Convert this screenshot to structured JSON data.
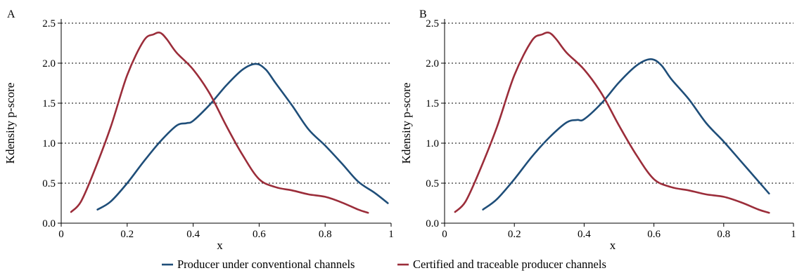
{
  "colors": {
    "conventional": "#1f4e79",
    "certified": "#9b2d3a"
  },
  "legend": [
    {
      "label": "Producer under conventional channels",
      "color": "#1f4e79"
    },
    {
      "label": "Certified and traceable producer channels",
      "color": "#9b2d3a"
    }
  ],
  "chart_data": [
    {
      "panel": "A",
      "type": "line",
      "xlabel": "x",
      "ylabel": "Kdensity p-score",
      "xlim": [
        0,
        1
      ],
      "ylim": [
        0,
        2.5
      ],
      "xticks": [
        "0",
        "0.2",
        "0.4",
        "0.6",
        "0.8",
        "1"
      ],
      "xtick_values": [
        0,
        0.2,
        0.4,
        0.6,
        0.8,
        1
      ],
      "yticks": [
        "0.0",
        "0.5",
        "1.0",
        "1.5",
        "2.0",
        "2.5"
      ],
      "ytick_values": [
        0,
        0.5,
        1.0,
        1.5,
        2.0,
        2.5
      ],
      "grid": "horizontal dotted",
      "series": [
        {
          "name": "Producer under conventional channels",
          "color": "#1f4e79",
          "points": [
            [
              0.11,
              0.17
            ],
            [
              0.15,
              0.27
            ],
            [
              0.2,
              0.5
            ],
            [
              0.25,
              0.77
            ],
            [
              0.3,
              1.02
            ],
            [
              0.35,
              1.22
            ],
            [
              0.38,
              1.25
            ],
            [
              0.4,
              1.28
            ],
            [
              0.45,
              1.48
            ],
            [
              0.5,
              1.72
            ],
            [
              0.55,
              1.92
            ],
            [
              0.59,
              1.99
            ],
            [
              0.62,
              1.92
            ],
            [
              0.65,
              1.75
            ],
            [
              0.7,
              1.47
            ],
            [
              0.75,
              1.17
            ],
            [
              0.8,
              0.97
            ],
            [
              0.85,
              0.75
            ],
            [
              0.9,
              0.52
            ],
            [
              0.95,
              0.38
            ],
            [
              0.99,
              0.25
            ]
          ]
        },
        {
          "name": "Certified and traceable producer channels",
          "color": "#9b2d3a",
          "points": [
            [
              0.03,
              0.14
            ],
            [
              0.06,
              0.27
            ],
            [
              0.1,
              0.65
            ],
            [
              0.15,
              1.2
            ],
            [
              0.2,
              1.85
            ],
            [
              0.25,
              2.28
            ],
            [
              0.28,
              2.36
            ],
            [
              0.3,
              2.38
            ],
            [
              0.32,
              2.3
            ],
            [
              0.35,
              2.13
            ],
            [
              0.4,
              1.92
            ],
            [
              0.45,
              1.62
            ],
            [
              0.5,
              1.22
            ],
            [
              0.55,
              0.85
            ],
            [
              0.6,
              0.55
            ],
            [
              0.65,
              0.45
            ],
            [
              0.7,
              0.41
            ],
            [
              0.75,
              0.36
            ],
            [
              0.8,
              0.33
            ],
            [
              0.85,
              0.26
            ],
            [
              0.9,
              0.17
            ],
            [
              0.93,
              0.13
            ]
          ]
        }
      ]
    },
    {
      "panel": "B",
      "type": "line",
      "xlabel": "x",
      "ylabel": "Kdensity p-score",
      "xlim": [
        0,
        1
      ],
      "ylim": [
        0,
        2.5
      ],
      "xticks": [
        "0",
        "0.2",
        "0.4",
        "0.6",
        "0.8",
        "1"
      ],
      "xtick_values": [
        0,
        0.2,
        0.4,
        0.6,
        0.8,
        1
      ],
      "yticks": [
        "0.0",
        "0.5",
        "1.0",
        "1.5",
        "2.0",
        "2.5"
      ],
      "ytick_values": [
        0,
        0.5,
        1.0,
        1.5,
        2.0,
        2.5
      ],
      "grid": "horizontal dotted",
      "series": [
        {
          "name": "Producer under conventional channels",
          "color": "#1f4e79",
          "points": [
            [
              0.11,
              0.17
            ],
            [
              0.15,
              0.3
            ],
            [
              0.2,
              0.55
            ],
            [
              0.25,
              0.83
            ],
            [
              0.3,
              1.07
            ],
            [
              0.35,
              1.26
            ],
            [
              0.38,
              1.29
            ],
            [
              0.4,
              1.3
            ],
            [
              0.45,
              1.5
            ],
            [
              0.5,
              1.76
            ],
            [
              0.55,
              1.97
            ],
            [
              0.59,
              2.05
            ],
            [
              0.62,
              1.98
            ],
            [
              0.65,
              1.8
            ],
            [
              0.7,
              1.55
            ],
            [
              0.75,
              1.25
            ],
            [
              0.8,
              1.02
            ],
            [
              0.85,
              0.77
            ],
            [
              0.9,
              0.52
            ],
            [
              0.93,
              0.37
            ]
          ]
        },
        {
          "name": "Certified and traceable producer channels",
          "color": "#9b2d3a",
          "points": [
            [
              0.03,
              0.14
            ],
            [
              0.06,
              0.27
            ],
            [
              0.1,
              0.65
            ],
            [
              0.15,
              1.2
            ],
            [
              0.2,
              1.85
            ],
            [
              0.25,
              2.28
            ],
            [
              0.28,
              2.36
            ],
            [
              0.3,
              2.38
            ],
            [
              0.32,
              2.3
            ],
            [
              0.35,
              2.13
            ],
            [
              0.4,
              1.92
            ],
            [
              0.45,
              1.62
            ],
            [
              0.5,
              1.22
            ],
            [
              0.55,
              0.85
            ],
            [
              0.6,
              0.55
            ],
            [
              0.65,
              0.45
            ],
            [
              0.7,
              0.41
            ],
            [
              0.75,
              0.36
            ],
            [
              0.8,
              0.33
            ],
            [
              0.85,
              0.26
            ],
            [
              0.9,
              0.17
            ],
            [
              0.93,
              0.13
            ]
          ]
        }
      ]
    }
  ]
}
